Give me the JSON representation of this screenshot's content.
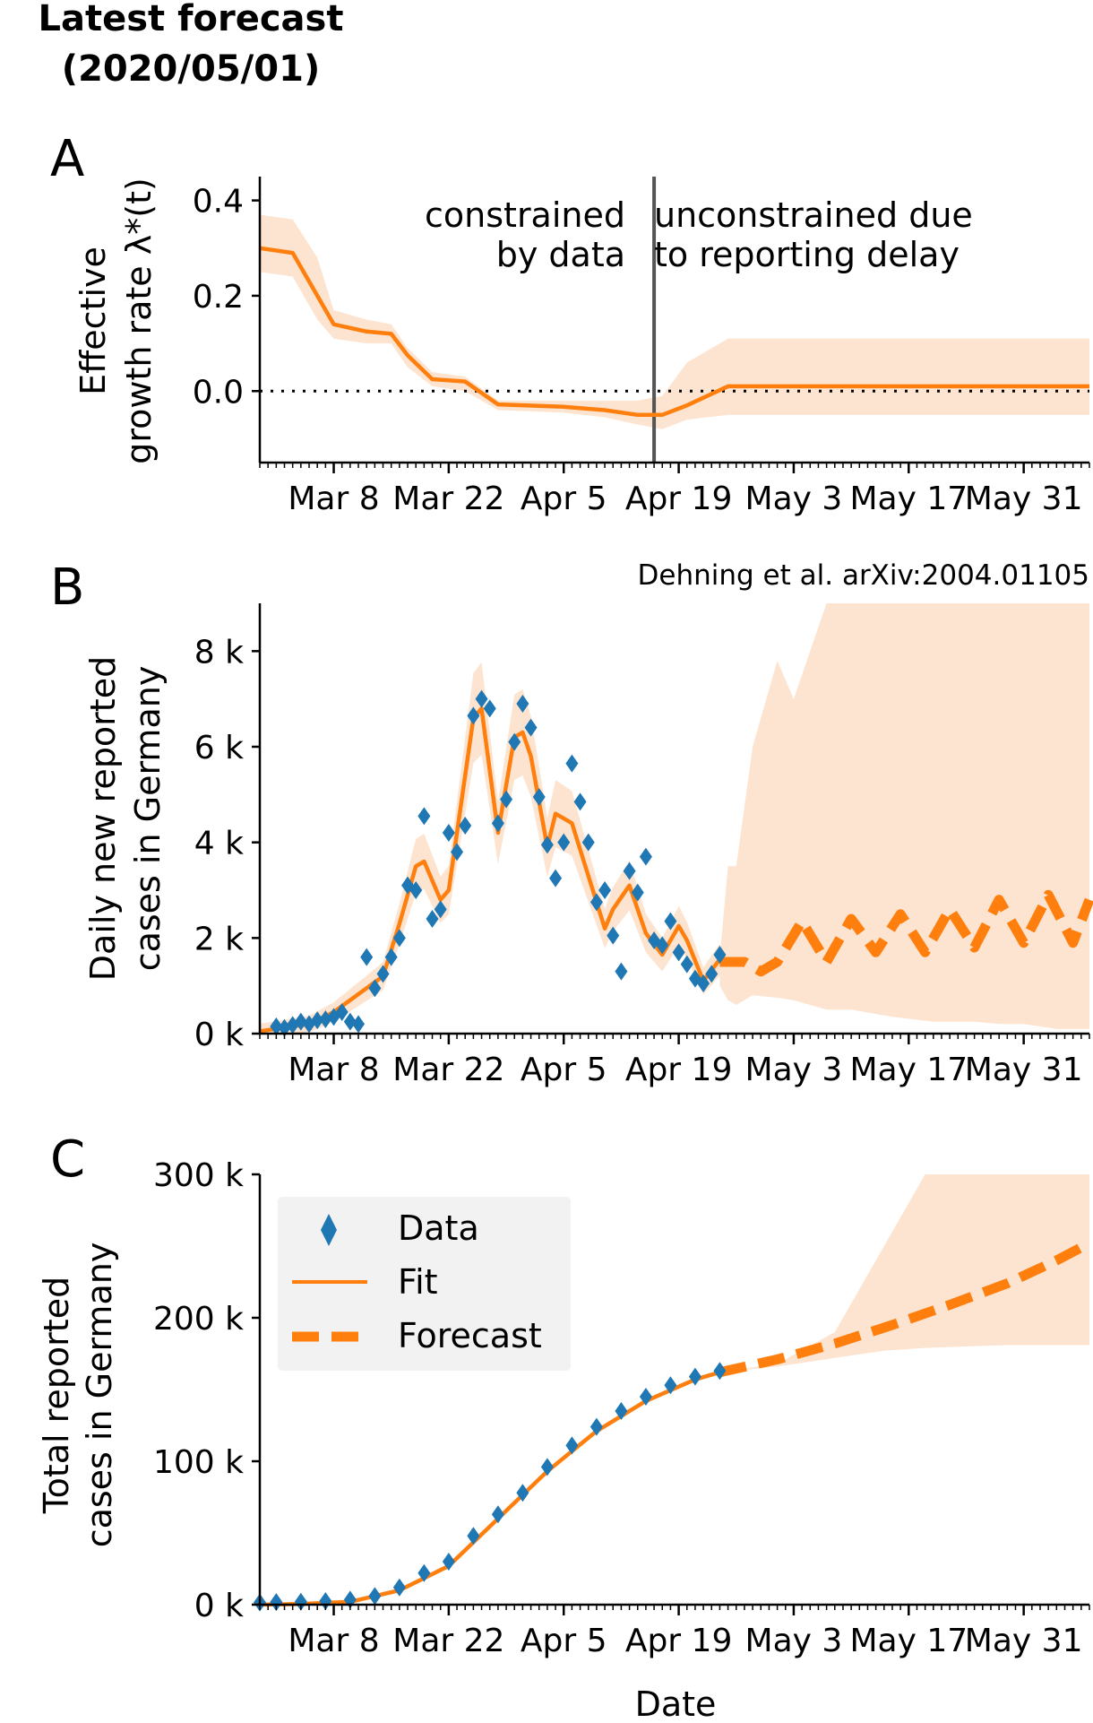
{
  "title_line1": "Latest forecast",
  "title_line2": "(2020/05/01)",
  "colors": {
    "fit": "#ff7f0e",
    "band": "#fde4d0",
    "data": "#1f77b4",
    "annotation": "#666666",
    "divider": "#555555"
  },
  "x_tick_labels": [
    "Mar 8",
    "Mar 22",
    "Apr 5",
    "Apr 19",
    "May 3",
    "May 17",
    "May 31"
  ],
  "x_axis_label": "Date",
  "chart_data": [
    {
      "type": "line",
      "panel_letter": "A",
      "ylabel_line1": "Effective",
      "ylabel_line2": "growth rate λ*(t)",
      "ylim": [
        -0.15,
        0.45
      ],
      "ytick_labels": [
        "0.0",
        "0.2",
        "0.4"
      ],
      "annotation_left_line1": "constrained",
      "annotation_left_line2": "by data",
      "annotation_right_line1": "unconstrained due",
      "annotation_right_line2": "to reporting delay",
      "divider_date": "2020-04-16",
      "zero_line": "dotted",
      "series": [
        {
          "x": [
            "2020-02-28",
            "2020-03-03",
            "2020-03-06",
            "2020-03-08",
            "2020-03-12",
            "2020-03-15",
            "2020-03-17",
            "2020-03-20",
            "2020-03-24",
            "2020-03-28",
            "2020-04-05",
            "2020-04-10",
            "2020-04-14",
            "2020-04-17",
            "2020-04-20",
            "2020-04-25",
            "2020-05-10",
            "2020-06-08"
          ],
          "values": [
            0.3,
            0.29,
            0.2,
            0.14,
            0.125,
            0.12,
            0.075,
            0.025,
            0.02,
            -0.028,
            -0.033,
            -0.04,
            -0.05,
            -0.05,
            -0.03,
            0.01,
            0.01,
            0.01
          ]
        }
      ],
      "band_upper": [
        0.37,
        0.36,
        0.28,
        0.17,
        0.15,
        0.14,
        0.09,
        0.04,
        0.03,
        -0.02,
        -0.02,
        -0.02,
        -0.02,
        -0.01,
        0.06,
        0.11,
        0.11,
        0.11
      ],
      "band_lower": [
        0.25,
        0.24,
        0.15,
        0.11,
        0.1,
        0.1,
        0.05,
        0.01,
        0.0,
        -0.04,
        -0.045,
        -0.055,
        -0.07,
        -0.08,
        -0.06,
        -0.05,
        -0.05,
        -0.05
      ]
    },
    {
      "type": "line",
      "panel_letter": "B",
      "citation": "Dehning et al. arXiv:2004.01105",
      "ylabel_line1": "Daily new reported",
      "ylabel_line2": "cases in Germany",
      "ylim": [
        0,
        9000
      ],
      "ytick_labels": [
        "0 k",
        "2 k",
        "4 k",
        "6 k",
        "8 k"
      ],
      "data": {
        "x": [
          "2020-03-01",
          "2020-03-02",
          "2020-03-03",
          "2020-03-04",
          "2020-03-05",
          "2020-03-06",
          "2020-03-07",
          "2020-03-08",
          "2020-03-09",
          "2020-03-10",
          "2020-03-11",
          "2020-03-12",
          "2020-03-13",
          "2020-03-14",
          "2020-03-15",
          "2020-03-16",
          "2020-03-17",
          "2020-03-18",
          "2020-03-19",
          "2020-03-20",
          "2020-03-21",
          "2020-03-22",
          "2020-03-23",
          "2020-03-24",
          "2020-03-25",
          "2020-03-26",
          "2020-03-27",
          "2020-03-28",
          "2020-03-29",
          "2020-03-30",
          "2020-03-31",
          "2020-04-01",
          "2020-04-02",
          "2020-04-03",
          "2020-04-04",
          "2020-04-05",
          "2020-04-06",
          "2020-04-07",
          "2020-04-08",
          "2020-04-09",
          "2020-04-10",
          "2020-04-11",
          "2020-04-12",
          "2020-04-13",
          "2020-04-14",
          "2020-04-15",
          "2020-04-16",
          "2020-04-17",
          "2020-04-18",
          "2020-04-19",
          "2020-04-20",
          "2020-04-21",
          "2020-04-22",
          "2020-04-23",
          "2020-04-24"
        ],
        "values": [
          150,
          120,
          180,
          250,
          200,
          280,
          300,
          350,
          450,
          250,
          200,
          1600,
          950,
          1250,
          1600,
          2000,
          3100,
          3000,
          4550,
          2400,
          2600,
          4200,
          3800,
          4350,
          6650,
          7000,
          6800,
          4400,
          4900,
          6100,
          6900,
          6400,
          4950,
          3950,
          3250,
          4000,
          5650,
          4850,
          4000,
          2750,
          3000,
          2050,
          1300,
          3400,
          2950,
          3700,
          1950,
          1850,
          2350,
          1700,
          1450,
          1150,
          1050,
          1250,
          1650
        ]
      },
      "series": [
        {
          "name": "Fit",
          "x": [
            "2020-02-28",
            "2020-03-05",
            "2020-03-08",
            "2020-03-12",
            "2020-03-14",
            "2020-03-16",
            "2020-03-18",
            "2020-03-19",
            "2020-03-21",
            "2020-03-22",
            "2020-03-25",
            "2020-03-26",
            "2020-03-28",
            "2020-03-30",
            "2020-03-31",
            "2020-04-01",
            "2020-04-03",
            "2020-04-04",
            "2020-04-06",
            "2020-04-08",
            "2020-04-10",
            "2020-04-11",
            "2020-04-13",
            "2020-04-15",
            "2020-04-17",
            "2020-04-19",
            "2020-04-20",
            "2020-04-22",
            "2020-04-24"
          ],
          "values": [
            50,
            200,
            450,
            950,
            1200,
            2300,
            3500,
            3600,
            2800,
            3000,
            6600,
            6800,
            4200,
            6200,
            6300,
            5800,
            3900,
            4600,
            4400,
            3300,
            2200,
            2600,
            3100,
            2100,
            1650,
            2250,
            1950,
            1100,
            1550
          ]
        }
      ],
      "forecast": {
        "name": "Forecast",
        "x": [
          "2020-04-24",
          "2020-04-27",
          "2020-04-29",
          "2020-05-01",
          "2020-05-04",
          "2020-05-07",
          "2020-05-10",
          "2020-05-13",
          "2020-05-16",
          "2020-05-19",
          "2020-05-22",
          "2020-05-25",
          "2020-05-28",
          "2020-05-31",
          "2020-06-03",
          "2020-06-06",
          "2020-06-08"
        ],
        "values": [
          1500,
          1500,
          1300,
          1500,
          2350,
          1500,
          2400,
          1700,
          2500,
          1700,
          2600,
          1800,
          2800,
          1900,
          2900,
          1900,
          2800
        ]
      },
      "band_upper": [
        1600,
        3500,
        3500,
        6000,
        7800,
        7000,
        9000,
        9000,
        9000,
        9000,
        9000,
        9000,
        9000,
        9000,
        9000,
        9000,
        9000
      ],
      "band_lower": [
        1000,
        700,
        600,
        800,
        750,
        700,
        500,
        500,
        350,
        250,
        250,
        200,
        200,
        150,
        100,
        100,
        100
      ]
    },
    {
      "type": "line",
      "panel_letter": "C",
      "ylabel_line1": "Total reported",
      "ylabel_line2": "cases in Germany",
      "ylim": [
        0,
        300000
      ],
      "ytick_labels": [
        "0 k",
        "100 k",
        "200 k",
        "300 k"
      ],
      "legend": {
        "placement": "upper-left",
        "data_label": "Data",
        "fit_label": "Fit",
        "forecast_label": "Forecast"
      },
      "data": {
        "x": [
          "2020-02-28",
          "2020-03-01",
          "2020-03-04",
          "2020-03-07",
          "2020-03-10",
          "2020-03-13",
          "2020-03-16",
          "2020-03-19",
          "2020-03-22",
          "2020-03-25",
          "2020-03-28",
          "2020-03-31",
          "2020-04-03",
          "2020-04-06",
          "2020-04-09",
          "2020-04-12",
          "2020-04-15",
          "2020-04-18",
          "2020-04-21",
          "2020-04-24"
        ],
        "values": [
          1500,
          1800,
          2000,
          2500,
          3500,
          6000,
          12000,
          22000,
          30000,
          48000,
          63000,
          78000,
          96000,
          111000,
          124000,
          135000,
          145000,
          153000,
          159000,
          163000
        ]
      },
      "series": [
        {
          "name": "Fit",
          "x": [
            "2020-02-28",
            "2020-03-04",
            "2020-03-10",
            "2020-03-16",
            "2020-03-22",
            "2020-03-28",
            "2020-04-03",
            "2020-04-09",
            "2020-04-15",
            "2020-04-21",
            "2020-04-24"
          ],
          "values": [
            0,
            500,
            2000,
            10000,
            27000,
            60000,
            93000,
            121000,
            142000,
            157000,
            162000
          ]
        }
      ],
      "forecast": {
        "name": "Forecast",
        "x": [
          "2020-04-24",
          "2020-05-01",
          "2020-05-08",
          "2020-05-15",
          "2020-05-22",
          "2020-05-29",
          "2020-06-04",
          "2020-06-08"
        ],
        "values": [
          162000,
          171000,
          182000,
          195000,
          209000,
          224000,
          240000,
          252000
        ]
      },
      "band_upper": [
        162000,
        168000,
        190000,
        250000,
        300000,
        300000,
        300000,
        300000
      ],
      "band_lower": [
        162000,
        166000,
        172000,
        177000,
        179000,
        181000,
        181000,
        181000
      ]
    }
  ]
}
